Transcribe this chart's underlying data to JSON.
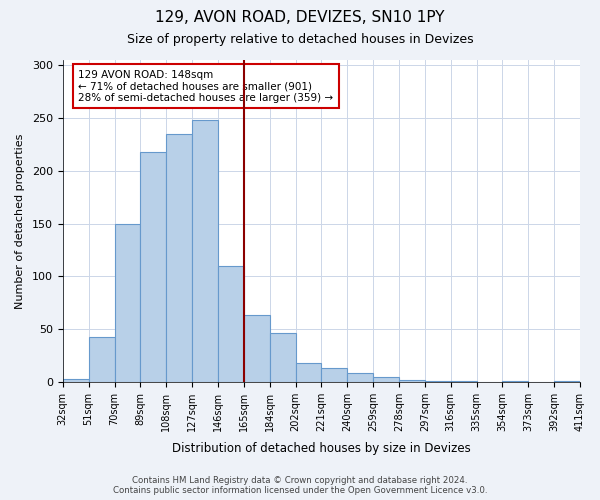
{
  "title": "129, AVON ROAD, DEVIZES, SN10 1PY",
  "subtitle": "Size of property relative to detached houses in Devizes",
  "xlabel": "Distribution of detached houses by size in Devizes",
  "ylabel": "Number of detached properties",
  "bin_edges": [
    "32sqm",
    "51sqm",
    "70sqm",
    "89sqm",
    "108sqm",
    "127sqm",
    "146sqm",
    "165sqm",
    "184sqm",
    "202sqm",
    "221sqm",
    "240sqm",
    "259sqm",
    "278sqm",
    "297sqm",
    "316sqm",
    "335sqm",
    "354sqm",
    "373sqm",
    "392sqm",
    "411sqm"
  ],
  "bar_heights": [
    3,
    42,
    150,
    218,
    235,
    248,
    110,
    63,
    46,
    18,
    13,
    8,
    5,
    2,
    1,
    1,
    0,
    1,
    0,
    1
  ],
  "bar_color": "#b8d0e8",
  "bar_edge_color": "#6699cc",
  "highlight_color": "#8b0000",
  "annotation_title": "129 AVON ROAD: 148sqm",
  "annotation_line1": "← 71% of detached houses are smaller (901)",
  "annotation_line2": "28% of semi-detached houses are larger (359) →",
  "annotation_box_color": "#ffffff",
  "annotation_box_edge": "#cc0000",
  "ylim": [
    0,
    305
  ],
  "yticks": [
    0,
    50,
    100,
    150,
    200,
    250,
    300
  ],
  "footer_line1": "Contains HM Land Registry data © Crown copyright and database right 2024.",
  "footer_line2": "Contains public sector information licensed under the Open Government Licence v3.0.",
  "bg_color": "#eef2f8",
  "plot_bg_color": "#ffffff",
  "grid_color": "#ccd6e8"
}
